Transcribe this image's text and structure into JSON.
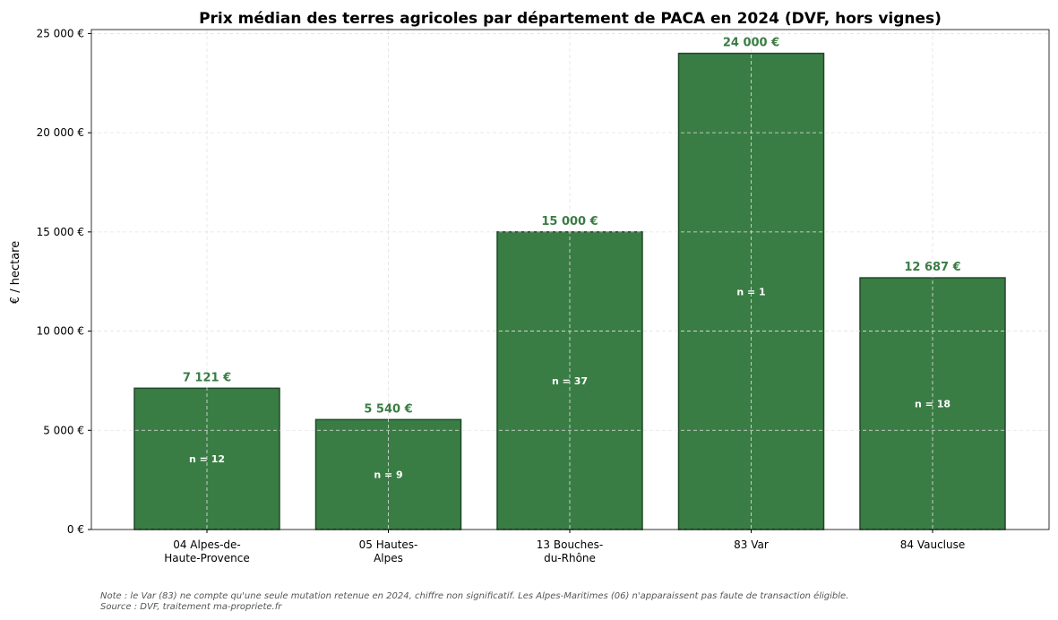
{
  "chart_data": {
    "type": "bar",
    "title": "Prix médian des terres agricoles par département de PACA en 2024 (DVF, hors vignes)",
    "xlabel": "",
    "ylabel": "€ / hectare",
    "categories": [
      [
        "04 Alpes-de-",
        "Haute-Provence"
      ],
      [
        "05 Hautes-",
        "Alpes"
      ],
      [
        "13 Bouches-",
        "du-Rhône"
      ],
      [
        "83 Var"
      ],
      [
        "84 Vaucluse"
      ]
    ],
    "values": [
      7121,
      5540,
      15000,
      24000,
      12687
    ],
    "value_labels": [
      "7 121 €",
      "5 540 €",
      "15 000 €",
      "24 000 €",
      "12 687 €"
    ],
    "counts": [
      "n = 12",
      "n = 9",
      "n = 37",
      "n = 1",
      "n = 18"
    ],
    "ylim": [
      0,
      25200
    ],
    "yticks": [
      0,
      5000,
      10000,
      15000,
      20000,
      25000
    ],
    "ytick_labels": [
      "0 €",
      "5 000 €",
      "10 000 €",
      "15 000 €",
      "20 000 €",
      "25 000 €"
    ],
    "grid": true,
    "colors": {
      "bar": "#3a7d44",
      "edge": "#1e4a27",
      "label": "#3a7d44"
    }
  },
  "footnote": {
    "note": "Note : le Var (83) ne compte qu'une seule mutation retenue en 2024, chiffre non significatif. Les Alpes-Maritimes (06) n'apparaissent pas faute de transaction éligible.",
    "source": "Source : DVF, traitement ma-propriete.fr"
  }
}
